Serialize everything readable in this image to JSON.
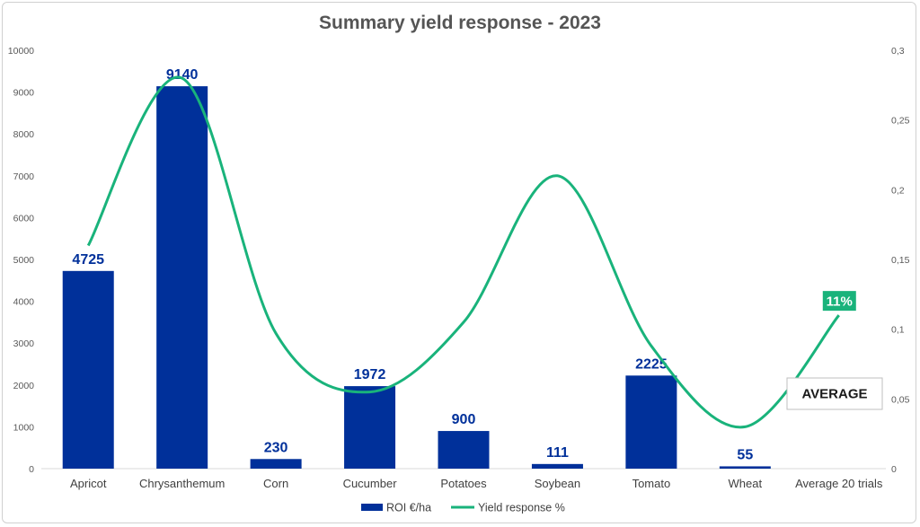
{
  "chart_data": {
    "type": "bar",
    "title": "Summary yield response - 2023",
    "categories": [
      "Apricot",
      "Chrysanthemum",
      "Corn",
      "Cucumber",
      "Potatoes",
      "Soybean",
      "Tomato",
      "Wheat",
      "Average 20 trials"
    ],
    "y_left": {
      "ylim": [
        0,
        10000
      ],
      "ticks": [
        "0",
        "1000",
        "2000",
        "3000",
        "4000",
        "5000",
        "6000",
        "7000",
        "8000",
        "9000",
        "10000"
      ]
    },
    "y_right": {
      "ylim": [
        0,
        0.3
      ],
      "ticks": [
        "0",
        "0,05",
        "0,1",
        "0,15",
        "0,2",
        "0,25",
        "0,3"
      ]
    },
    "series": [
      {
        "name": "ROI €/ha",
        "kind": "bar",
        "axis": "left",
        "color": "#00309a",
        "values": [
          4725,
          9140,
          230,
          1972,
          900,
          111,
          2225,
          55,
          null
        ],
        "labels": [
          "4725",
          "9140",
          "230",
          "1972",
          "900",
          "111",
          "2225",
          "55",
          ""
        ]
      },
      {
        "name": "Yield response %",
        "kind": "line",
        "axis": "right",
        "color": "#19b37b",
        "smooth": true,
        "values": [
          0.16,
          0.28,
          0.097,
          0.055,
          0.105,
          0.21,
          0.088,
          0.03,
          0.11
        ]
      }
    ],
    "annotations": [
      {
        "text": "11%",
        "category": "Average 20 trials",
        "style": "green-badge"
      },
      {
        "text": "AVERAGE",
        "style": "outlined-box"
      }
    ],
    "legend": "bottom",
    "grid": false
  }
}
